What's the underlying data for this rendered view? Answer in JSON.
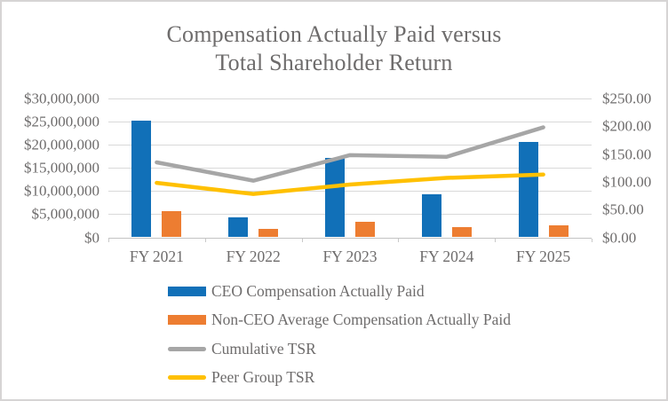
{
  "frame": {
    "background": "#ffffff",
    "border_color": "#d6d4d4",
    "text_color": "#6e6c6c",
    "gridline_color": "#d9d9d9"
  },
  "chart_data": {
    "type": "combo-bar-line",
    "title": "Compensation Actually Paid versus Total Shareholder Return",
    "title_lines": [
      "Compensation Actually Paid versus",
      "Total Shareholder Return"
    ],
    "categories": [
      "FY 2021",
      "FY 2022",
      "FY 2023",
      "FY 2024",
      "FY 2025"
    ],
    "series": [
      {
        "name": "CEO Compensation Actually Paid",
        "type": "bar",
        "axis": "left",
        "color": "#1170b8",
        "values": [
          25200000,
          4300000,
          17200000,
          9300000,
          20600000
        ]
      },
      {
        "name": "Non-CEO Average Compensation Actually Paid",
        "type": "bar",
        "axis": "left",
        "color": "#ed7d31",
        "values": [
          5700000,
          1800000,
          3300000,
          2300000,
          2600000
        ]
      },
      {
        "name": "Cumulative TSR",
        "type": "line",
        "axis": "right",
        "color": "#a6a6a6",
        "values": [
          135,
          102,
          148,
          145,
          198
        ]
      },
      {
        "name": "Peer Group TSR",
        "type": "line",
        "axis": "right",
        "color": "#ffc000",
        "values": [
          98,
          78,
          95,
          107,
          113
        ]
      }
    ],
    "left_axis": {
      "min": 0,
      "max": 30000000,
      "tick_values": [
        30000000,
        25000000,
        20000000,
        15000000,
        10000000,
        5000000,
        0
      ],
      "tick_labels": [
        "$30,000,000",
        "$25,000,000",
        "$20,000,000",
        "$15,000,000",
        "$10,000,000",
        "$5,000,000",
        "$0"
      ]
    },
    "right_axis": {
      "min": 0,
      "max": 250,
      "tick_values": [
        250,
        200,
        150,
        100,
        50,
        0
      ],
      "tick_labels": [
        "$250.00",
        "$200.00",
        "$150.00",
        "$100.00",
        "$50.00",
        "$0.00"
      ]
    },
    "grid": true,
    "legend_position": "bottom-left-column"
  }
}
